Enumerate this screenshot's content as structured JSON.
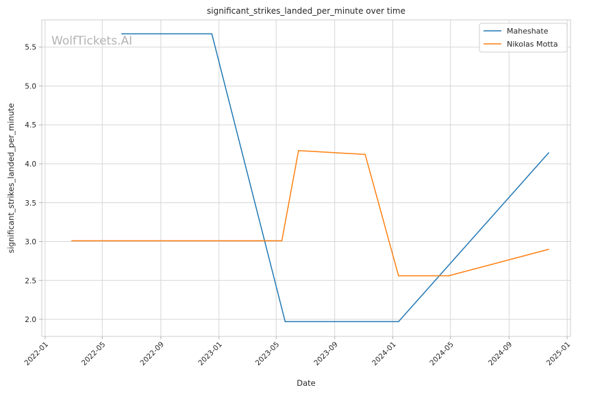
{
  "chart_data": {
    "type": "line",
    "title": "significant_strikes_landed_per_minute over time",
    "xlabel": "Date",
    "ylabel": "significant_strikes_landed_per_minute",
    "watermark": "WolfTickets.AI",
    "x_tick_labels": [
      "2022-01",
      "2022-05",
      "2022-09",
      "2023-01",
      "2023-05",
      "2023-09",
      "2024-01",
      "2024-05",
      "2024-09",
      "2025-01"
    ],
    "y_tick_labels": [
      "2.0",
      "2.5",
      "3.0",
      "3.5",
      "4.0",
      "4.5",
      "5.0",
      "5.5"
    ],
    "xlim": [
      "2021-12-25",
      "2025-01-08"
    ],
    "ylim": [
      1.78,
      5.85
    ],
    "grid": true,
    "legend_position": "top-right",
    "series": [
      {
        "name": "Maheshate",
        "color": "#1f77b4",
        "points": [
          {
            "x": "2022-06-11",
            "y": 5.67
          },
          {
            "x": "2022-12-17",
            "y": 5.67
          },
          {
            "x": "2023-05-20",
            "y": 1.97
          },
          {
            "x": "2024-01-13",
            "y": 1.97
          },
          {
            "x": "2024-11-23",
            "y": 4.14
          }
        ]
      },
      {
        "name": "Nikolas Motta",
        "color": "#ff7f0e",
        "points": [
          {
            "x": "2022-02-26",
            "y": 3.01
          },
          {
            "x": "2023-05-13",
            "y": 3.01
          },
          {
            "x": "2023-06-17",
            "y": 4.17
          },
          {
            "x": "2023-11-04",
            "y": 4.12
          },
          {
            "x": "2024-01-13",
            "y": 2.56
          },
          {
            "x": "2024-04-27",
            "y": 2.56
          },
          {
            "x": "2024-11-23",
            "y": 2.9
          }
        ]
      }
    ]
  }
}
